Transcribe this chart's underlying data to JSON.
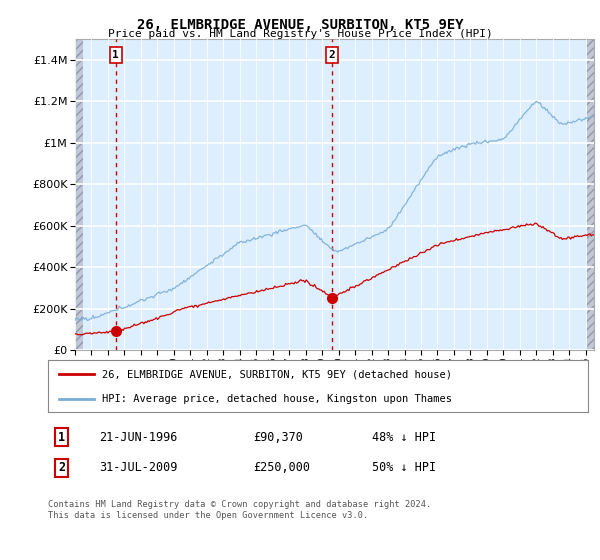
{
  "title": "26, ELMBRIDGE AVENUE, SURBITON, KT5 9EY",
  "subtitle": "Price paid vs. HM Land Registry's House Price Index (HPI)",
  "ylim": [
    0,
    1500000
  ],
  "xlim_start": 1994.0,
  "xlim_end": 2025.5,
  "sale1_date": 1996.47,
  "sale1_price": 90370,
  "sale2_date": 2009.58,
  "sale2_price": 250000,
  "hpi_color": "#7aaed6",
  "price_color": "#cc0000",
  "vline_color": "#cc0000",
  "legend_label_price": "26, ELMBRIDGE AVENUE, SURBITON, KT5 9EY (detached house)",
  "legend_label_hpi": "HPI: Average price, detached house, Kingston upon Thames",
  "table_row1": [
    "1",
    "21-JUN-1996",
    "£90,370",
    "48% ↓ HPI"
  ],
  "table_row2": [
    "2",
    "31-JUL-2009",
    "£250,000",
    "50% ↓ HPI"
  ],
  "footnote": "Contains HM Land Registry data © Crown copyright and database right 2024.\nThis data is licensed under the Open Government Licence v3.0.",
  "yticks": [
    0,
    200000,
    400000,
    600000,
    800000,
    1000000,
    1200000,
    1400000
  ],
  "ytick_labels": [
    "£0",
    "£200K",
    "£400K",
    "£600K",
    "£800K",
    "£1M",
    "£1.2M",
    "£1.4M"
  ],
  "background_color": "#ddeeff",
  "hatch_color": "#c0c8d8",
  "grid_color": "#ffffff"
}
